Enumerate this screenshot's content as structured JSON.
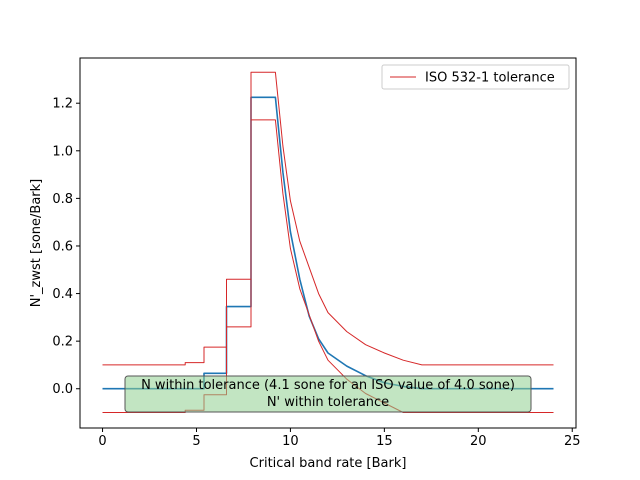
{
  "chart_data": {
    "type": "line",
    "title": "",
    "xlabel": "Critical band rate [Bark]",
    "ylabel": "N'_zwst [sone/Bark]",
    "xlim": [
      -1.2,
      25.2
    ],
    "ylim": [
      -0.165,
      1.39
    ],
    "xticks": [
      0,
      5,
      10,
      15,
      20,
      25
    ],
    "xtick_labels": [
      "0",
      "5",
      "10",
      "15",
      "20",
      "25"
    ],
    "yticks": [
      0.0,
      0.2,
      0.4,
      0.6,
      0.8,
      1.0,
      1.2
    ],
    "ytick_labels": [
      "0.0",
      "0.2",
      "0.4",
      "0.6",
      "0.8",
      "1.0",
      "1.2"
    ],
    "grid": false,
    "legend": {
      "position": "top-right",
      "entries": [
        "ISO 532-1 tolerance"
      ]
    },
    "annotation": {
      "line1": "N within tolerance (4.1 sone for an ISO value of 4.0 sone)",
      "line2": "N' within tolerance",
      "box_color": "#8fcf8f"
    },
    "colors": {
      "tolerance": "#d62728",
      "series": "#1f77b4"
    },
    "series": [
      {
        "name": "",
        "role": "measured",
        "x": [
          0,
          5.4,
          5.4,
          6.6,
          6.6,
          7.9,
          7.9,
          9.2,
          9.6,
          10.0,
          10.5,
          11.0,
          11.5,
          12.0,
          13.0,
          14.0,
          15.0,
          16.0,
          17.0,
          18.0,
          20.0,
          24.0
        ],
        "y": [
          0.0,
          0.0,
          0.065,
          0.065,
          0.345,
          0.345,
          1.225,
          1.225,
          0.91,
          0.66,
          0.46,
          0.305,
          0.21,
          0.15,
          0.095,
          0.055,
          0.025,
          0.01,
          0.0,
          0.0,
          0.0,
          0.0
        ]
      },
      {
        "name": "ISO 532-1 tolerance",
        "role": "upper",
        "x": [
          0,
          4.4,
          4.4,
          5.4,
          5.4,
          6.6,
          6.6,
          7.9,
          7.9,
          9.2,
          9.6,
          10.0,
          10.5,
          11.0,
          11.5,
          12.0,
          13.0,
          14.0,
          15.0,
          16.0,
          17.0,
          20.0,
          24.0
        ],
        "y": [
          0.1,
          0.1,
          0.11,
          0.11,
          0.175,
          0.175,
          0.46,
          0.46,
          1.33,
          1.33,
          1.02,
          0.79,
          0.62,
          0.51,
          0.4,
          0.32,
          0.24,
          0.185,
          0.15,
          0.12,
          0.1,
          0.1,
          0.1
        ]
      },
      {
        "name": "",
        "role": "lower",
        "x": [
          0,
          4.4,
          4.4,
          5.4,
          5.4,
          6.6,
          6.6,
          7.9,
          7.9,
          9.2,
          9.6,
          10.0,
          10.5,
          11.0,
          11.5,
          12.0,
          13.0,
          14.0,
          15.0,
          16.0,
          24.0
        ],
        "y": [
          -0.1,
          -0.1,
          -0.09,
          -0.09,
          -0.025,
          -0.025,
          0.26,
          0.26,
          1.13,
          1.13,
          0.82,
          0.59,
          0.42,
          0.31,
          0.2,
          0.12,
          0.04,
          -0.02,
          -0.06,
          -0.1,
          -0.1
        ]
      }
    ]
  }
}
